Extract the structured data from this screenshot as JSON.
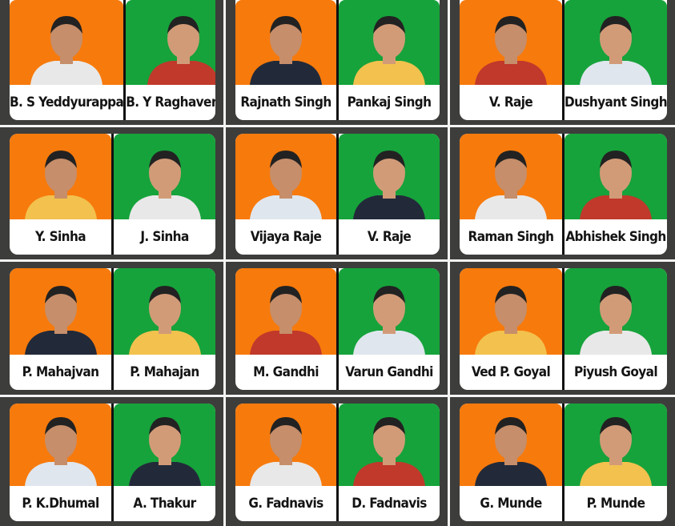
{
  "colors": {
    "left_background": "#f77a0c",
    "right_background": "#16a33b",
    "panel": "#3d3d3b"
  },
  "pairs": [
    {
      "left": "B. S Yeddyurappa",
      "right": "B. Y Raghavendra"
    },
    {
      "left": "Rajnath Singh",
      "right": "Pankaj Singh"
    },
    {
      "left": "V. Raje",
      "right": "Dushyant Singh"
    },
    {
      "left": "Y.  Sinha",
      "right": "J.  Sinha"
    },
    {
      "left": "Vijaya Raje",
      "right": "V. Raje"
    },
    {
      "left": "Raman Singh",
      "right": "Abhishek Singh"
    },
    {
      "left": "P. Mahajvan",
      "right": "P. Mahajan"
    },
    {
      "left": "M. Gandhi",
      "right": "Varun Gandhi"
    },
    {
      "left": "Ved P. Goyal",
      "right": "Piyush Goyal"
    },
    {
      "left": "P. K.Dhumal",
      "right": "A. Thakur"
    },
    {
      "left": "G. Fadnavis",
      "right": "D. Fadnavis"
    },
    {
      "left": "G. Munde",
      "right": "P. Munde"
    }
  ]
}
